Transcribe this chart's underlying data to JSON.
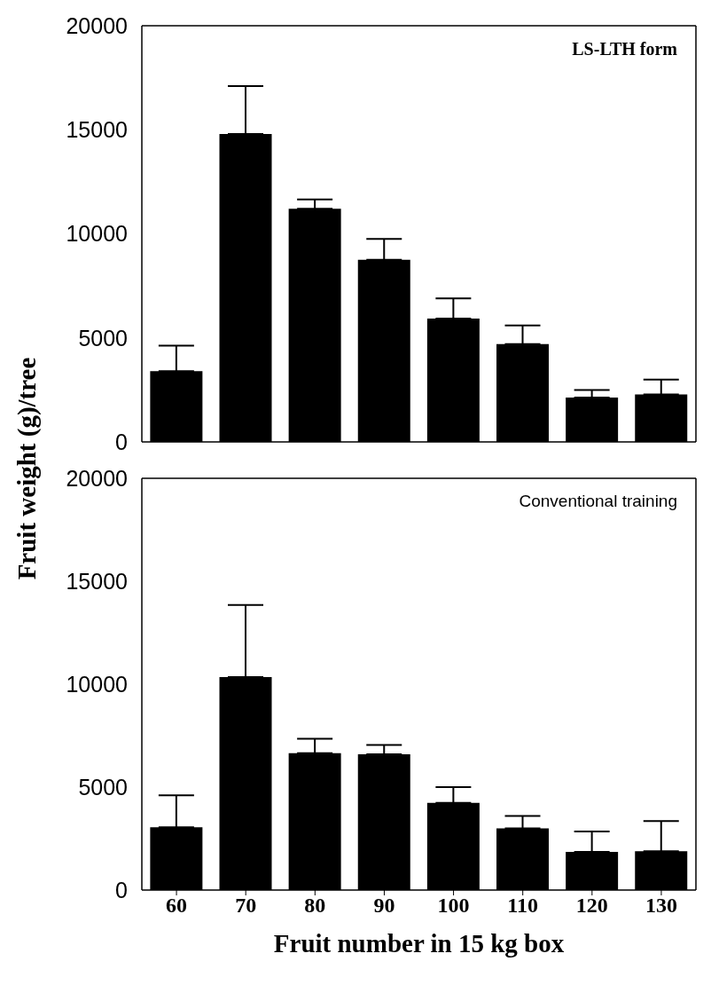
{
  "chart_data": [
    {
      "type": "bar",
      "title": "LS-LTH form",
      "ylabel": "Fruit weight (g)/tree",
      "categories": [
        "60",
        "70",
        "80",
        "90",
        "100",
        "110",
        "120",
        "130"
      ],
      "values": [
        3400,
        14800,
        11200,
        8750,
        5930,
        4700,
        2130,
        2280
      ],
      "errors": [
        [
          3400,
          4630
        ],
        [
          14800,
          17100
        ],
        [
          11200,
          11650
        ],
        [
          8750,
          9750
        ],
        [
          5930,
          6900
        ],
        [
          4700,
          5600
        ],
        [
          2130,
          2500
        ],
        [
          2280,
          3000
        ]
      ],
      "color": "#000000",
      "ylim": [
        0,
        20000
      ],
      "yticks": [
        0,
        5000,
        10000,
        15000,
        20000
      ],
      "tick_labels": "y",
      "grid": false,
      "legend": false
    },
    {
      "type": "bar",
      "title": "Conventional training",
      "xlabel": "Fruit number in 15 kg box",
      "categories": [
        "60",
        "70",
        "80",
        "90",
        "100",
        "110",
        "120",
        "130"
      ],
      "values": [
        3050,
        10350,
        6650,
        6600,
        4230,
        3000,
        1850,
        1890
      ],
      "errors": [
        [
          3050,
          4600
        ],
        [
          10350,
          13850
        ],
        [
          6650,
          7350
        ],
        [
          6600,
          7050
        ],
        [
          4230,
          5000
        ],
        [
          3000,
          3600
        ],
        [
          1850,
          2850
        ],
        [
          1890,
          3350
        ]
      ],
      "color": "#000000",
      "ylim": [
        0,
        20000
      ],
      "yticks": [
        0,
        5000,
        10000,
        15000,
        20000
      ],
      "grid": false,
      "legend": false
    }
  ]
}
